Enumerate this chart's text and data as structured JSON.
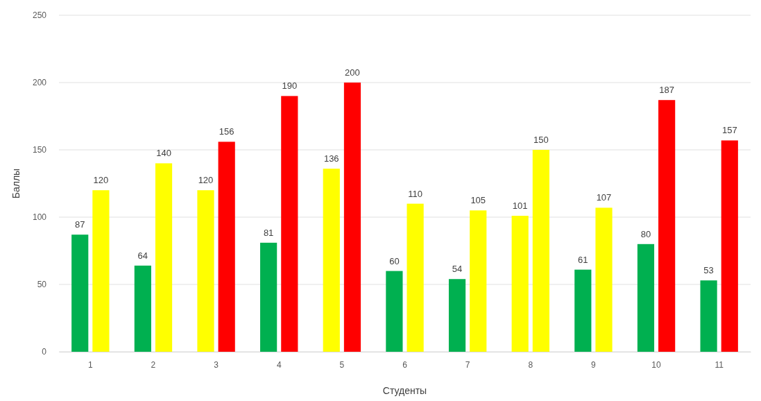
{
  "chart_data": {
    "type": "bar",
    "xlabel": "Студенты",
    "ylabel": "Баллы",
    "categories": [
      "1",
      "2",
      "3",
      "4",
      "5",
      "6",
      "7",
      "8",
      "9",
      "10",
      "11"
    ],
    "series": [
      {
        "colors": [
          "#00b050",
          "#00b050",
          "#ffff00",
          "#00b050",
          "#ffff00",
          "#00b050",
          "#00b050",
          "#ffff00",
          "#00b050",
          "#00b050",
          "#00b050"
        ],
        "values": [
          87,
          64,
          120,
          81,
          136,
          60,
          54,
          101,
          61,
          80,
          53
        ]
      },
      {
        "colors": [
          "#ffff00",
          "#ffff00",
          "#ff0000",
          "#ff0000",
          "#ff0000",
          "#ffff00",
          "#ffff00",
          "#ffff00",
          "#ffff00",
          "#ff0000",
          "#ff0000"
        ],
        "values": [
          120,
          140,
          156,
          190,
          200,
          110,
          105,
          150,
          107,
          187,
          157
        ]
      }
    ],
    "ylim": [
      0,
      250
    ],
    "yticks": [
      0,
      50,
      100,
      150,
      200,
      250
    ],
    "grid": "y",
    "data_labels": true
  }
}
